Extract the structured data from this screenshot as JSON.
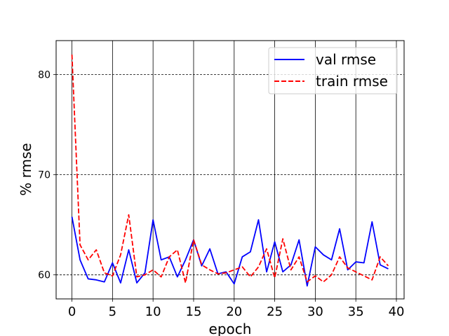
{
  "chart_data": {
    "type": "line",
    "title": "",
    "xlabel": "epoch",
    "ylabel": "% rmse",
    "xlim": [
      -1.95,
      40.95
    ],
    "ylim": [
      57.6,
      83.4
    ],
    "x_ticks": [
      0,
      5,
      10,
      15,
      20,
      25,
      30,
      35,
      40
    ],
    "y_ticks": [
      60,
      70,
      80
    ],
    "grid": {
      "x": "solid",
      "y": "dashed"
    },
    "legend_position": "top-right",
    "x": [
      0,
      1,
      2,
      3,
      4,
      5,
      6,
      7,
      8,
      9,
      10,
      11,
      12,
      13,
      14,
      15,
      16,
      17,
      18,
      19,
      20,
      21,
      22,
      23,
      24,
      25,
      26,
      27,
      28,
      29,
      30,
      31,
      32,
      33,
      34,
      35,
      36,
      37,
      38,
      39
    ],
    "series": [
      {
        "name": "val rmse",
        "color": "#0000ff",
        "style": "solid",
        "values": [
          65.8,
          61.5,
          59.6,
          59.5,
          59.3,
          61.2,
          59.2,
          62.5,
          59.2,
          60.2,
          65.5,
          61.5,
          61.8,
          59.8,
          61.5,
          63.5,
          60.9,
          62.6,
          60.1,
          60.3,
          59.1,
          61.8,
          62.3,
          65.5,
          60.3,
          63.3,
          60.3,
          61.0,
          63.5,
          58.9,
          62.8,
          62.0,
          61.5,
          64.6,
          60.5,
          61.3,
          61.2,
          65.3,
          61.0,
          60.6
        ]
      },
      {
        "name": "train rmse",
        "color": "#ff0000",
        "style": "dashed",
        "values": [
          82.0,
          63.0,
          61.5,
          62.5,
          60.2,
          59.9,
          62.0,
          66.0,
          59.8,
          60.0,
          60.5,
          59.8,
          61.8,
          62.5,
          59.2,
          63.5,
          61.0,
          60.5,
          60.1,
          60.2,
          60.5,
          60.8,
          59.8,
          60.8,
          62.6,
          59.7,
          63.6,
          60.5,
          61.8,
          59.3,
          59.9,
          59.3,
          60.0,
          61.8,
          60.7,
          60.3,
          59.9,
          59.5,
          61.8,
          60.9
        ]
      }
    ]
  }
}
